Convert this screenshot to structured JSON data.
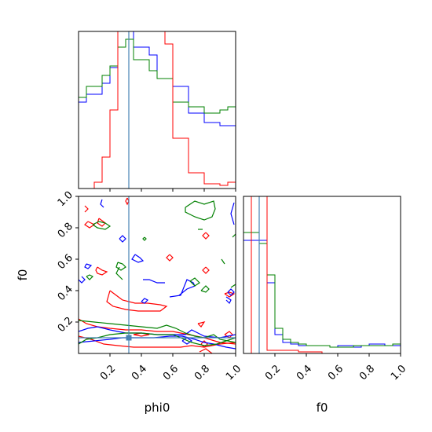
{
  "chart_data": {
    "type": "corner",
    "parameters": [
      "phi0",
      "f0"
    ],
    "axis_labels": {
      "x_left": "phi0",
      "x_right": "f0",
      "y_left": "f0"
    },
    "truth": {
      "phi0": 0.32,
      "f0": 0.1
    },
    "truth_color": "#4682b4",
    "series_colors": {
      "blue": "#0000ff",
      "green": "#008000",
      "red": "#ff0000"
    },
    "hist_phi0": {
      "bins": 20,
      "range": [
        0,
        1
      ],
      "blue": [
        0.55,
        0.6,
        0.6,
        0.67,
        0.77,
        1.15,
        1.15,
        0.9,
        0.9,
        0.85,
        0.7,
        0.7,
        0.65,
        0.65,
        0.48,
        0.48,
        0.42,
        0.42,
        0.4,
        0.4
      ],
      "green": [
        0.58,
        0.65,
        0.65,
        0.72,
        0.78,
        0.9,
        0.95,
        0.82,
        0.82,
        0.75,
        0.7,
        0.7,
        0.55,
        0.55,
        0.52,
        0.52,
        0.48,
        0.48,
        0.5,
        0.52
      ],
      "red": [
        0.0,
        0.0,
        0.04,
        0.2,
        0.5,
        1.2,
        1.2,
        1.2,
        1.2,
        1.2,
        1.2,
        0.92,
        0.32,
        0.32,
        0.1,
        0.1,
        0.03,
        0.03,
        0.02,
        0.04
      ]
    },
    "hist_f0": {
      "bins": 20,
      "range": [
        0,
        1
      ],
      "blue": [
        0.72,
        0.72,
        0.72,
        0.45,
        0.12,
        0.07,
        0.06,
        0.05,
        0.05,
        0.05,
        0.05,
        0.04,
        0.05,
        0.05,
        0.04,
        0.05,
        0.06,
        0.06,
        0.05,
        0.05
      ],
      "green": [
        0.77,
        0.77,
        0.7,
        0.5,
        0.16,
        0.09,
        0.07,
        0.06,
        0.05,
        0.05,
        0.05,
        0.04,
        0.04,
        0.04,
        0.05,
        0.05,
        0.05,
        0.05,
        0.05,
        0.06
      ],
      "red": [
        0.0,
        1.2,
        1.2,
        0.02,
        0.02,
        0.02,
        0.02,
        0.01,
        0.01,
        0.01,
        0.0,
        0.0,
        0.0,
        0.0,
        0.0,
        0.0,
        0.0,
        0.0,
        0.0,
        0.0
      ]
    },
    "ticks": {
      "phi0_x": [
        "0.2",
        "0.4",
        "0.6",
        "0.8",
        "1.0"
      ],
      "f0_x": [
        "0.2",
        "0.4",
        "0.6",
        "0.8",
        "1.0"
      ],
      "f0_y": [
        "0.2",
        "0.4",
        "0.6",
        "0.8",
        "1.0"
      ]
    },
    "contours": {
      "red": [
        [
          [
            0.31,
            0.99
          ],
          [
            0.3,
            0.97
          ],
          [
            0.31,
            0.95
          ],
          [
            0.32,
            0.97
          ],
          [
            0.31,
            0.99
          ]
        ],
        [
          [
            0.06,
            0.84
          ],
          [
            0.1,
            0.82
          ],
          [
            0.07,
            0.8
          ],
          [
            0.04,
            0.82
          ],
          [
            0.06,
            0.84
          ]
        ],
        [
          [
            0.13,
            0.86
          ],
          [
            0.17,
            0.83
          ],
          [
            0.15,
            0.81
          ],
          [
            0.12,
            0.83
          ],
          [
            0.13,
            0.86
          ]
        ],
        [
          [
            0.04,
            0.94
          ],
          [
            0.06,
            0.92
          ],
          [
            0.04,
            0.9
          ]
        ],
        [
          [
            0.58,
            0.63
          ],
          [
            0.6,
            0.61
          ],
          [
            0.58,
            0.59
          ],
          [
            0.56,
            0.61
          ],
          [
            0.58,
            0.63
          ]
        ],
        [
          [
            0.12,
            0.55
          ],
          [
            0.15,
            0.53
          ],
          [
            0.18,
            0.52
          ],
          [
            0.15,
            0.5
          ],
          [
            0.12,
            0.51
          ],
          [
            0.11,
            0.53
          ],
          [
            0.12,
            0.55
          ]
        ],
        [
          [
            0.81,
            0.77
          ],
          [
            0.83,
            0.75
          ],
          [
            0.81,
            0.73
          ],
          [
            0.79,
            0.75
          ],
          [
            0.81,
            0.77
          ]
        ],
        [
          [
            0.81,
            0.55
          ],
          [
            0.83,
            0.53
          ],
          [
            0.81,
            0.51
          ],
          [
            0.79,
            0.53
          ],
          [
            0.81,
            0.55
          ]
        ],
        [
          [
            0.93,
            0.38
          ],
          [
            0.96,
            0.39
          ],
          [
            0.99,
            0.38
          ],
          [
            0.96,
            0.36
          ],
          [
            0.93,
            0.38
          ]
        ],
        [
          [
            0.2,
            0.4
          ],
          [
            0.24,
            0.37
          ],
          [
            0.28,
            0.34
          ],
          [
            0.36,
            0.32
          ],
          [
            0.44,
            0.32
          ],
          [
            0.52,
            0.31
          ],
          [
            0.56,
            0.3
          ],
          [
            0.52,
            0.27
          ],
          [
            0.45,
            0.27
          ],
          [
            0.38,
            0.27
          ],
          [
            0.3,
            0.28
          ],
          [
            0.22,
            0.3
          ],
          [
            0.18,
            0.33
          ],
          [
            0.2,
            0.4
          ]
        ],
        [
          [
            0.0,
            0.22
          ],
          [
            0.05,
            0.19
          ],
          [
            0.12,
            0.17
          ],
          [
            0.2,
            0.16
          ],
          [
            0.3,
            0.15
          ],
          [
            0.4,
            0.15
          ],
          [
            0.5,
            0.14
          ],
          [
            0.6,
            0.14
          ],
          [
            0.7,
            0.12
          ],
          [
            0.8,
            0.1
          ],
          [
            0.9,
            0.07
          ],
          [
            1.0,
            0.06
          ]
        ],
        [
          [
            0.0,
            0.11
          ],
          [
            0.08,
            0.09
          ],
          [
            0.16,
            0.06
          ],
          [
            0.25,
            0.05
          ],
          [
            0.35,
            0.04
          ],
          [
            0.45,
            0.04
          ],
          [
            0.55,
            0.04
          ],
          [
            0.65,
            0.04
          ],
          [
            0.72,
            0.05
          ],
          [
            0.8,
            0.04
          ],
          [
            0.9,
            0.06
          ],
          [
            1.0,
            0.07
          ]
        ],
        [
          [
            0.35,
            0.12
          ],
          [
            0.4,
            0.13
          ],
          [
            0.45,
            0.12
          ],
          [
            0.4,
            0.11
          ],
          [
            0.35,
            0.12
          ]
        ],
        [
          [
            0.76,
            0.19
          ],
          [
            0.8,
            0.2
          ],
          [
            0.78,
            0.17
          ],
          [
            0.76,
            0.19
          ]
        ],
        [
          [
            0.78,
            0.06
          ],
          [
            0.8,
            0.08
          ],
          [
            0.82,
            0.06
          ],
          [
            0.8,
            0.04
          ],
          [
            0.78,
            0.06
          ]
        ],
        [
          [
            0.93,
            0.12
          ],
          [
            0.96,
            0.14
          ],
          [
            0.98,
            0.12
          ],
          [
            0.96,
            0.1
          ],
          [
            0.93,
            0.12
          ]
        ],
        [
          [
            0.77,
            0.01
          ],
          [
            0.81,
            0.03
          ],
          [
            0.85,
            0.0
          ]
        ]
      ],
      "blue": [
        [
          [
            0.15,
            0.98
          ],
          [
            0.14,
            0.95
          ],
          [
            0.16,
            0.93
          ]
        ],
        [
          [
            0.36,
            0.63
          ],
          [
            0.39,
            0.61
          ],
          [
            0.41,
            0.59
          ],
          [
            0.38,
            0.58
          ],
          [
            0.34,
            0.6
          ],
          [
            0.36,
            0.63
          ]
        ],
        [
          [
            0.05,
            0.57
          ],
          [
            0.08,
            0.56
          ],
          [
            0.06,
            0.54
          ],
          [
            0.04,
            0.55
          ],
          [
            0.05,
            0.57
          ]
        ],
        [
          [
            0.02,
            0.49
          ],
          [
            0.04,
            0.47
          ],
          [
            0.02,
            0.45
          ],
          [
            0.0,
            0.47
          ]
        ],
        [
          [
            0.26,
            0.73
          ],
          [
            0.28,
            0.75
          ],
          [
            0.3,
            0.73
          ],
          [
            0.28,
            0.71
          ],
          [
            0.26,
            0.73
          ]
        ],
        [
          [
            0.41,
            0.47
          ],
          [
            0.45,
            0.47
          ],
          [
            0.5,
            0.45
          ],
          [
            0.55,
            0.45
          ]
        ],
        [
          [
            0.58,
            0.36
          ],
          [
            0.65,
            0.37
          ],
          [
            0.69,
            0.47
          ],
          [
            0.73,
            0.45
          ],
          [
            0.74,
            0.43
          ],
          [
            0.69,
            0.41
          ],
          [
            0.64,
            0.37
          ]
        ],
        [
          [
            0.4,
            0.33
          ],
          [
            0.42,
            0.35
          ],
          [
            0.44,
            0.34
          ],
          [
            0.42,
            0.32
          ],
          [
            0.4,
            0.33
          ]
        ],
        [
          [
            0.95,
            0.39
          ],
          [
            0.97,
            0.41
          ],
          [
            0.99,
            0.39
          ],
          [
            0.97,
            0.37
          ],
          [
            0.95,
            0.39
          ]
        ],
        [
          [
            0.99,
            0.82
          ],
          [
            0.97,
            0.89
          ],
          [
            0.99,
            0.96
          ]
        ],
        [
          [
            0.94,
            0.36
          ],
          [
            0.97,
            0.34
          ],
          [
            0.96,
            0.32
          ],
          [
            0.94,
            0.34
          ]
        ],
        [
          [
            0.0,
            0.07
          ],
          [
            0.1,
            0.08
          ],
          [
            0.2,
            0.09
          ],
          [
            0.28,
            0.1
          ],
          [
            0.38,
            0.1
          ],
          [
            0.48,
            0.1
          ],
          [
            0.58,
            0.11
          ],
          [
            0.66,
            0.11
          ],
          [
            0.74,
            0.09
          ],
          [
            0.8,
            0.07
          ],
          [
            0.86,
            0.06
          ],
          [
            0.94,
            0.04
          ],
          [
            1.0,
            0.03
          ]
        ],
        [
          [
            0.0,
            0.14
          ],
          [
            0.06,
            0.16
          ],
          [
            0.12,
            0.17
          ],
          [
            0.2,
            0.15
          ],
          [
            0.3,
            0.13
          ],
          [
            0.4,
            0.13
          ],
          [
            0.5,
            0.12
          ],
          [
            0.6,
            0.12
          ],
          [
            0.68,
            0.12
          ],
          [
            0.72,
            0.15
          ],
          [
            0.76,
            0.13
          ],
          [
            0.8,
            0.11
          ],
          [
            0.9,
            0.1
          ],
          [
            1.0,
            0.12
          ]
        ],
        [
          [
            0.66,
            0.08
          ],
          [
            0.69,
            0.1
          ],
          [
            0.72,
            0.08
          ],
          [
            0.69,
            0.06
          ],
          [
            0.66,
            0.08
          ]
        ]
      ],
      "green": [
        [
          [
            0.68,
            0.93
          ],
          [
            0.74,
            0.97
          ],
          [
            0.8,
            0.95
          ],
          [
            0.86,
            0.97
          ],
          [
            0.87,
            0.92
          ],
          [
            0.85,
            0.87
          ],
          [
            0.8,
            0.85
          ],
          [
            0.74,
            0.87
          ],
          [
            0.68,
            0.9
          ],
          [
            0.68,
            0.93
          ]
        ],
        [
          [
            0.09,
            0.82
          ],
          [
            0.13,
            0.84
          ],
          [
            0.17,
            0.83
          ],
          [
            0.2,
            0.81
          ],
          [
            0.17,
            0.79
          ],
          [
            0.12,
            0.8
          ],
          [
            0.09,
            0.82
          ]
        ],
        [
          [
            0.25,
            0.58
          ],
          [
            0.28,
            0.57
          ],
          [
            0.3,
            0.55
          ],
          [
            0.27,
            0.53
          ],
          [
            0.24,
            0.55
          ],
          [
            0.25,
            0.58
          ]
        ],
        [
          [
            0.26,
            0.55
          ],
          [
            0.24,
            0.51
          ],
          [
            0.28,
            0.47
          ]
        ],
        [
          [
            0.05,
            0.49
          ],
          [
            0.07,
            0.5
          ],
          [
            0.09,
            0.49
          ],
          [
            0.07,
            0.47
          ],
          [
            0.05,
            0.49
          ]
        ],
        [
          [
            0.42,
            0.74
          ],
          [
            0.43,
            0.73
          ],
          [
            0.42,
            0.72
          ],
          [
            0.41,
            0.73
          ],
          [
            0.42,
            0.74
          ]
        ],
        [
          [
            0.76,
            0.79
          ],
          [
            0.79,
            0.79
          ]
        ],
        [
          [
            0.71,
            0.46
          ],
          [
            0.74,
            0.48
          ],
          [
            0.77,
            0.45
          ],
          [
            0.74,
            0.43
          ],
          [
            0.71,
            0.46
          ]
        ],
        [
          [
            0.78,
            0.4
          ],
          [
            0.81,
            0.39
          ],
          [
            0.83,
            0.41
          ],
          [
            0.81,
            0.43
          ],
          [
            0.78,
            0.4
          ]
        ],
        [
          [
            0.91,
            0.6
          ],
          [
            0.93,
            0.57
          ]
        ],
        [
          [
            0.98,
            0.74
          ],
          [
            1.0,
            0.76
          ]
        ],
        [
          [
            0.97,
            0.42
          ],
          [
            1.0,
            0.44
          ]
        ],
        [
          [
            0.0,
            0.21
          ],
          [
            0.1,
            0.2
          ],
          [
            0.2,
            0.19
          ],
          [
            0.3,
            0.18
          ],
          [
            0.4,
            0.17
          ],
          [
            0.5,
            0.16
          ],
          [
            0.56,
            0.18
          ],
          [
            0.62,
            0.16
          ],
          [
            0.68,
            0.13
          ],
          [
            0.74,
            0.11
          ],
          [
            0.8,
            0.1
          ],
          [
            0.86,
            0.12
          ],
          [
            0.9,
            0.09
          ],
          [
            0.95,
            0.08
          ],
          [
            1.0,
            0.07
          ]
        ],
        [
          [
            0.0,
            0.06
          ],
          [
            0.05,
            0.09
          ],
          [
            0.12,
            0.1
          ],
          [
            0.2,
            0.12
          ],
          [
            0.3,
            0.13
          ],
          [
            0.4,
            0.13
          ],
          [
            0.5,
            0.12
          ],
          [
            0.6,
            0.12
          ],
          [
            0.65,
            0.1
          ],
          [
            0.72,
            0.07
          ],
          [
            0.8,
            0.05
          ],
          [
            0.88,
            0.06
          ],
          [
            0.94,
            0.08
          ],
          [
            1.0,
            0.1
          ]
        ]
      ]
    }
  }
}
